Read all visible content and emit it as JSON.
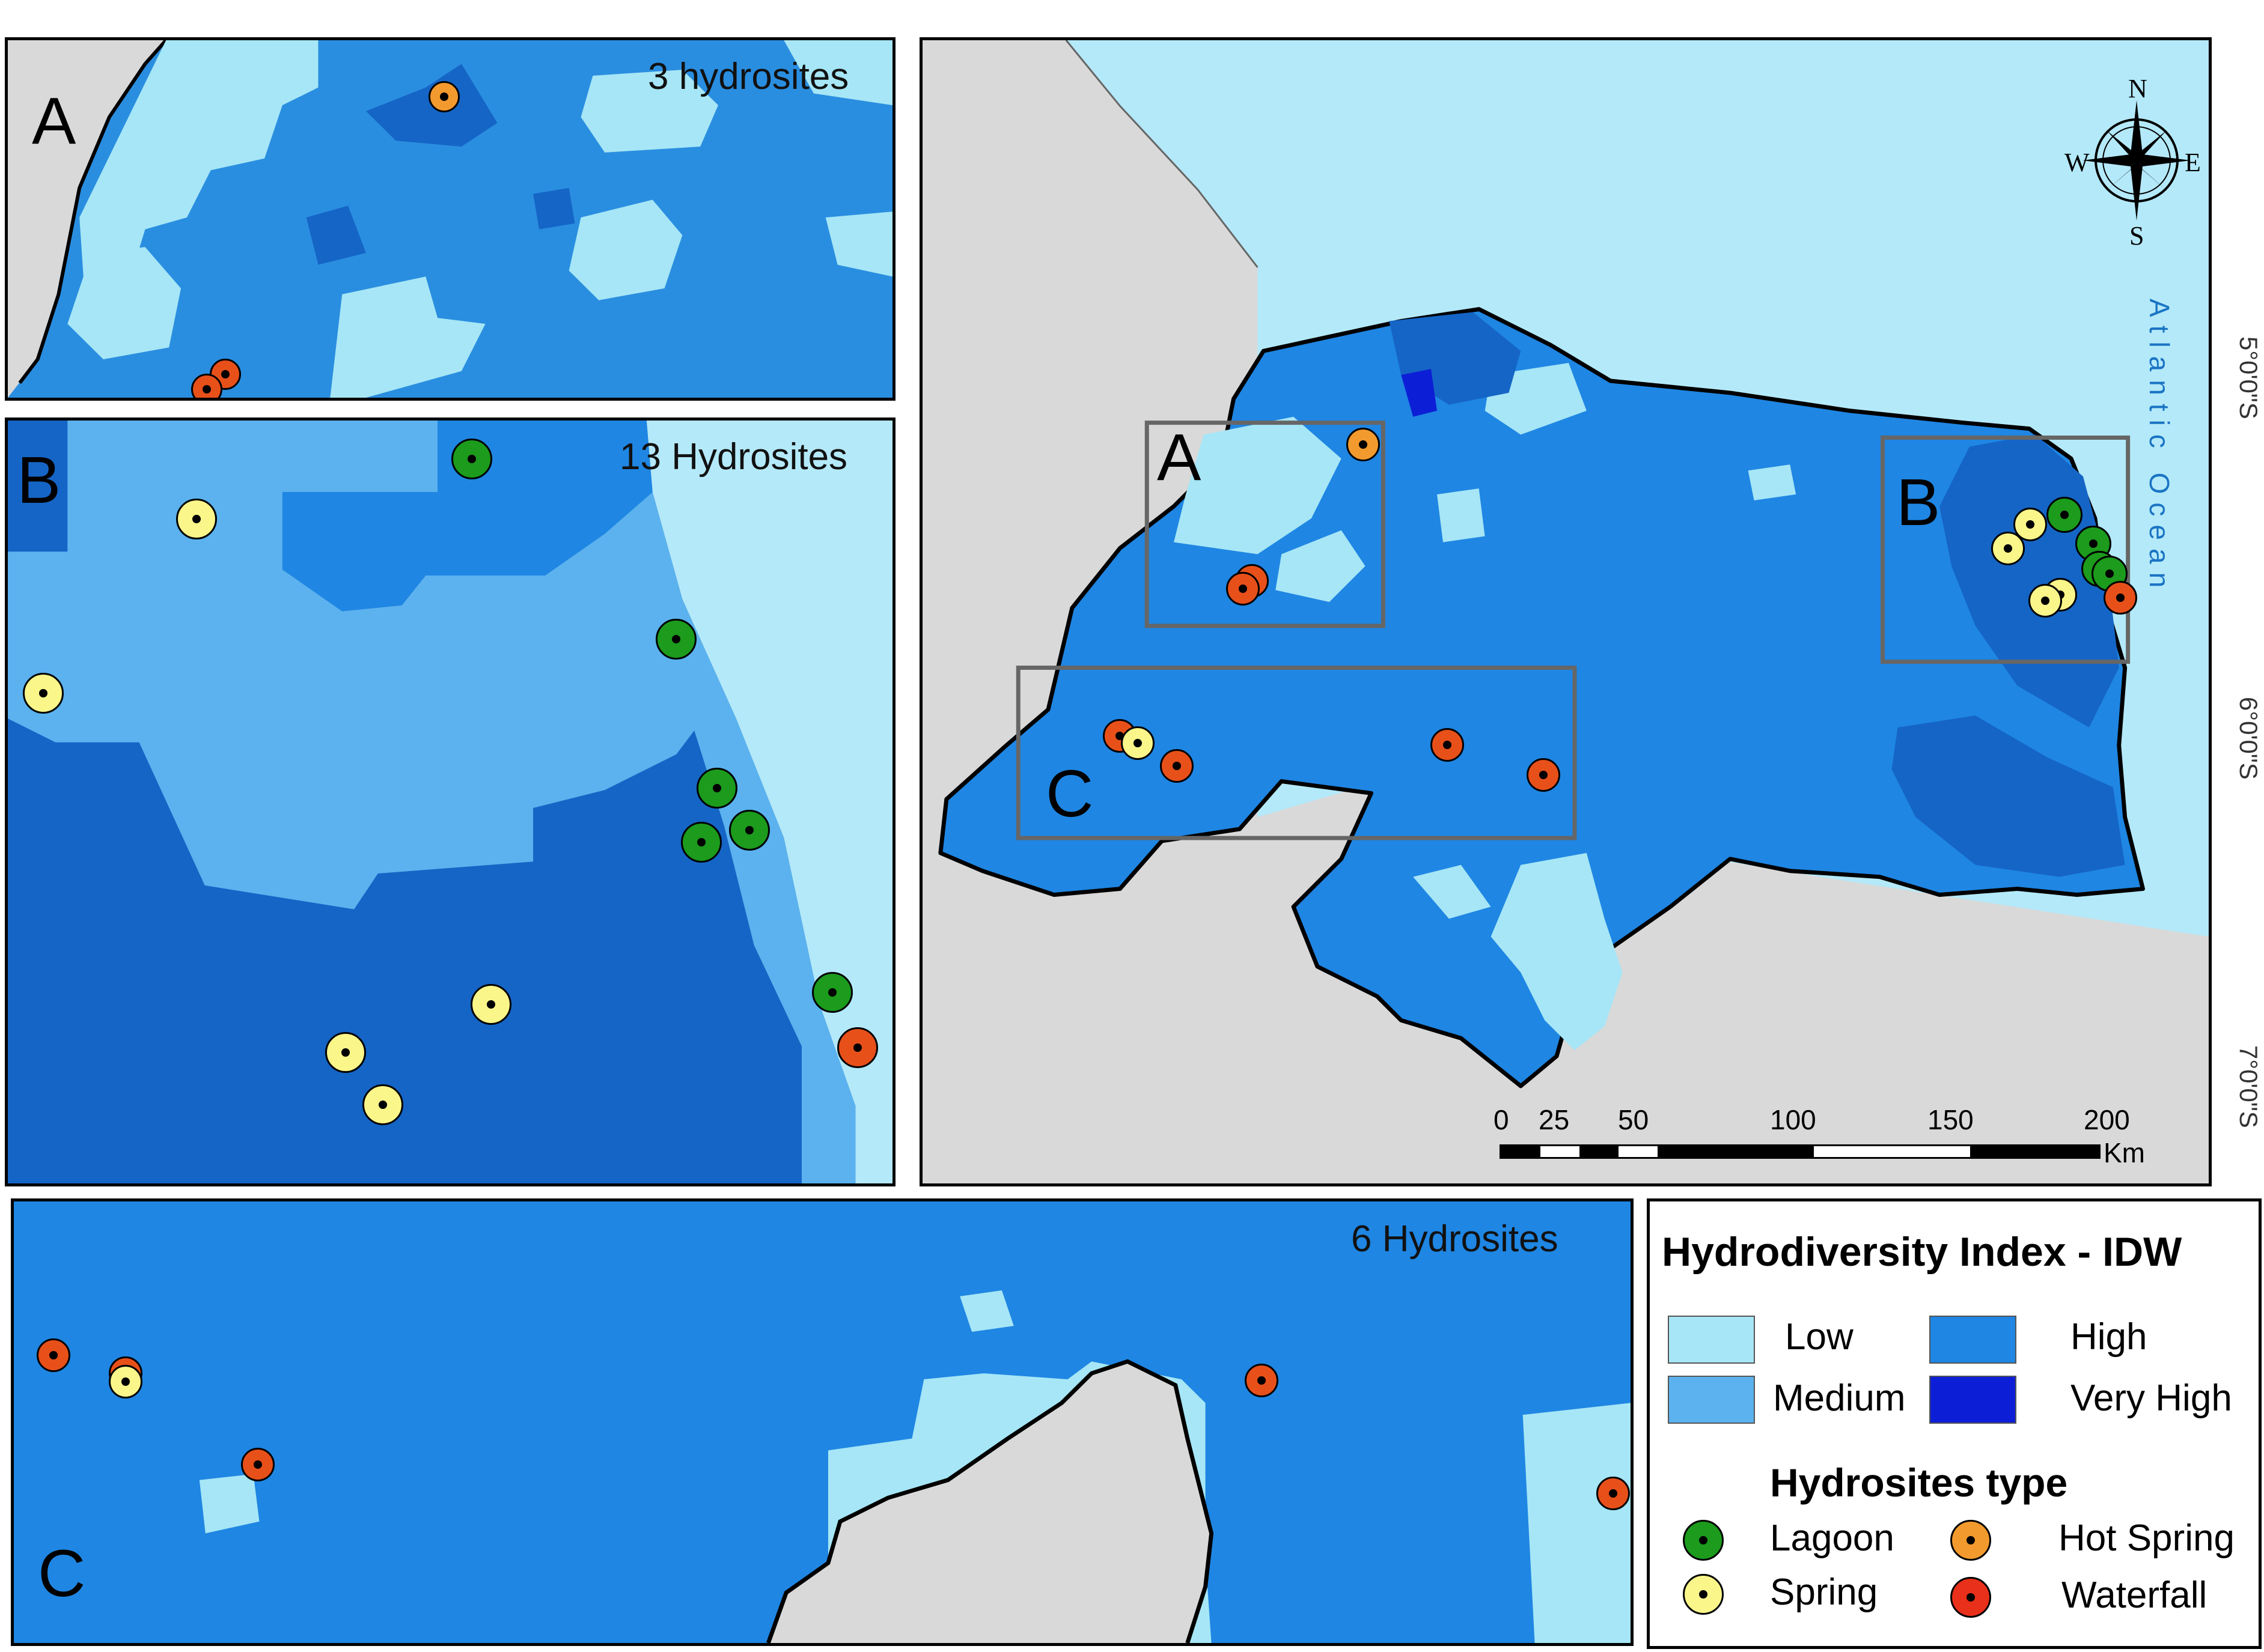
{
  "panels": {
    "a": {
      "label": "A",
      "count": "3 hydrosites"
    },
    "b": {
      "label": "B",
      "count": "13  Hydrosites"
    },
    "c": {
      "label": "C",
      "count": "6  Hydrosites"
    },
    "main_labels": {
      "a": "A",
      "b": "B",
      "c": "C"
    }
  },
  "ocean_label": "Atlantic  Ocean",
  "compass": {
    "n": "N",
    "s": "S",
    "e": "E",
    "w": "W"
  },
  "lat_ticks": [
    "5°0'0\"S",
    "6°0'0\"S",
    "7°0'0\"S"
  ],
  "scale_bar": {
    "ticks": [
      "0",
      "25",
      "50",
      "100",
      "150",
      "200"
    ],
    "unit": "Km"
  },
  "legend": {
    "title": "Hydrodiversity Index - IDW",
    "classes": [
      {
        "label": "Low",
        "color": "#a6e6f6"
      },
      {
        "label": "Medium",
        "color": "#5bb2ee"
      },
      {
        "label": "High",
        "color": "#1f86e3"
      },
      {
        "label": "Very High",
        "color": "#0d1fd6"
      }
    ],
    "types_title": "Hydrosites type",
    "types": [
      {
        "label": "Lagoon",
        "color": "#1c9b1c"
      },
      {
        "label": "Hot Spring",
        "color": "#f39a2e"
      },
      {
        "label": "Spring",
        "color": "#faf68a"
      },
      {
        "label": "Waterfall",
        "color": "#e8301a"
      }
    ]
  },
  "colors": {
    "land": "#d9d9d9",
    "ocean": "#b4e9f9",
    "low": "#a6e6f6",
    "medium": "#5bb2ee",
    "high": "#1f86e3",
    "very_high": "#0d1fd6",
    "dark": "#1565c6"
  }
}
